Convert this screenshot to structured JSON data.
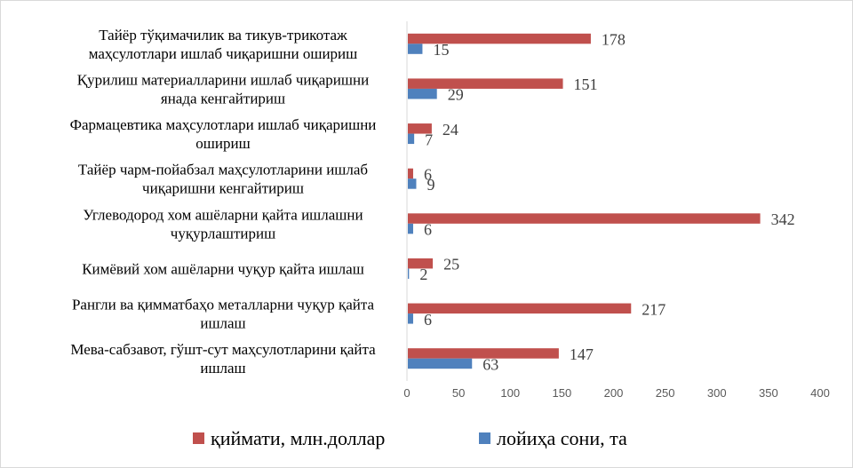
{
  "chart_data": {
    "type": "bar",
    "orientation": "horizontal",
    "categories": [
      [
        "Тайёр тўқимачилик ва тикув-трикотаж",
        "маҳсулотлари  ишлаб чиқаришни  ошириш"
      ],
      [
        "Қурилиш  материалларини  ишлаб чиқаришни",
        "янада кенгайтириш"
      ],
      [
        "Фармацевтика маҳсулотлари  ишлаб чиқаришни",
        "ошириш"
      ],
      [
        "Тайёр  чарм-пойабзал маҳсулотларини  ишлаб",
        "чиқаришни кенгайтириш"
      ],
      [
        "Углеводород хом ашёларни  қайта ишлашни",
        "чуқурлаштириш"
      ],
      [
        "Кимёвий хом ашёларни  чуқур  қайта ишлаш"
      ],
      [
        "Рангли ва қимматбаҳо металларни  чуқур  қайта",
        "ишлаш"
      ],
      [
        "Мева-сабзавот, гўшт-сут маҳсулотларини  қайта",
        "ишлаш"
      ]
    ],
    "series": [
      {
        "name": "қиймати, млн.доллар",
        "color": "#c0504d",
        "values": [
          178,
          151,
          24,
          6,
          342,
          25,
          217,
          147
        ]
      },
      {
        "name": "лойиҳа сони, та",
        "color": "#4f81bd",
        "values": [
          15,
          29,
          7,
          9,
          6,
          2,
          6,
          63
        ]
      }
    ],
    "xlim": [
      0,
      400
    ],
    "xticks": [
      "0",
      "50",
      "100",
      "150",
      "200",
      "250",
      "300",
      "350",
      "400"
    ],
    "grid": false,
    "legend": "bottom",
    "title": "",
    "xlabel": "",
    "ylabel": ""
  }
}
